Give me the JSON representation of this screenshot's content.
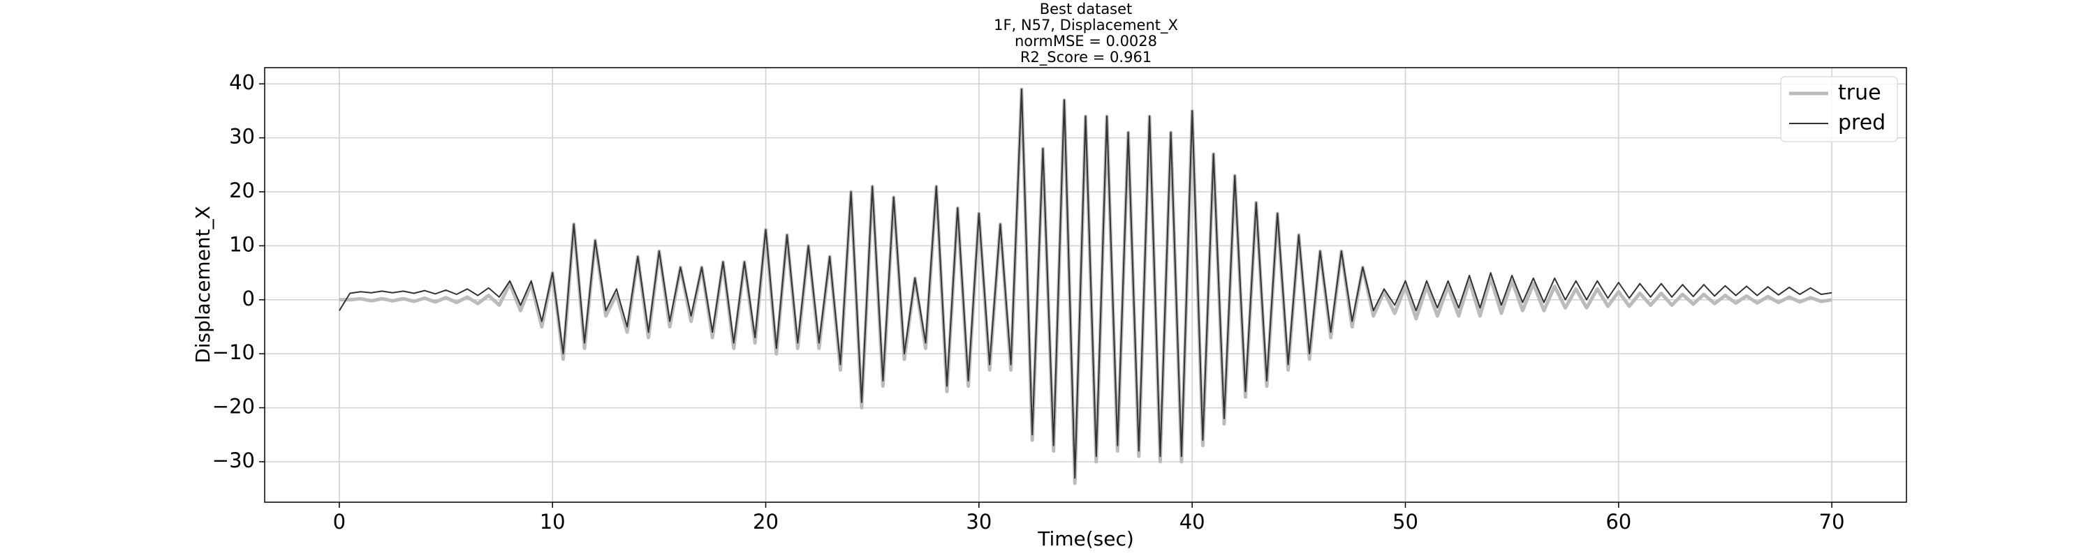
{
  "chart_data": {
    "type": "line",
    "title": "Best dataset",
    "subtitle": [
      "1F, N57, Displacement_X",
      "normMSE = 0.0028",
      "R2_Score = 0.961"
    ],
    "xlabel": "Time(sec)",
    "ylabel": "Displacement_X",
    "x": [
      0,
      0.5,
      1,
      1.5,
      2,
      2.5,
      3,
      3.5,
      4,
      4.5,
      5,
      5.5,
      6,
      6.5,
      7,
      7.5,
      8,
      8.5,
      9,
      9.5,
      10,
      10.5,
      11,
      11.5,
      12,
      12.5,
      13,
      13.5,
      14,
      14.5,
      15,
      15.5,
      16,
      16.5,
      17,
      17.5,
      18,
      18.5,
      19,
      19.5,
      20,
      20.5,
      21,
      21.5,
      22,
      22.5,
      23,
      23.5,
      24,
      24.5,
      25,
      25.5,
      26,
      26.5,
      27,
      27.5,
      28,
      28.5,
      29,
      29.5,
      30,
      30.5,
      31,
      31.5,
      32,
      32.5,
      33,
      33.5,
      34,
      34.5,
      35,
      35.5,
      36,
      36.5,
      37,
      37.5,
      38,
      38.5,
      39,
      39.5,
      40,
      40.5,
      41,
      41.5,
      42,
      42.5,
      43,
      43.5,
      44,
      44.5,
      45,
      45.5,
      46,
      46.5,
      47,
      47.5,
      48,
      48.5,
      49,
      49.5,
      50,
      50.5,
      51,
      51.5,
      52,
      52.5,
      53,
      53.5,
      54,
      54.5,
      55,
      55.5,
      56,
      56.5,
      57,
      57.5,
      58,
      58.5,
      59,
      59.5,
      60,
      60.5,
      61,
      61.5,
      62,
      62.5,
      63,
      63.5,
      64,
      64.5,
      65,
      65.5,
      66,
      66.5,
      67,
      67.5,
      68,
      68.5,
      69,
      69.5,
      70
    ],
    "series": [
      {
        "name": "true",
        "color": "#bbbbbb",
        "width": 5,
        "values": [
          0,
          0,
          0.2,
          -0.2,
          0.2,
          -0.2,
          0.2,
          -0.3,
          0.3,
          -0.4,
          0.4,
          -0.5,
          0.5,
          -0.7,
          0.8,
          -1,
          3,
          -2,
          3,
          -5,
          5,
          -11,
          14,
          -9,
          11,
          -3,
          1,
          -6,
          8,
          -7,
          9,
          -5,
          6,
          -4,
          6,
          -7,
          7,
          -9,
          7,
          -8,
          13,
          -10,
          12,
          -9,
          10,
          -9,
          8,
          -13,
          20,
          -20,
          21,
          -16,
          19,
          -11,
          4,
          -9,
          21,
          -17,
          17,
          -16,
          16,
          -13,
          14,
          -13,
          39,
          -26,
          28,
          -28,
          37,
          -34,
          34,
          -30,
          34,
          -28,
          31,
          -29,
          34,
          -30,
          31,
          -30,
          35,
          -27,
          27,
          -23,
          23,
          -18,
          18,
          -16,
          16,
          -13,
          12,
          -11,
          9,
          -7,
          9,
          -5,
          6,
          -3,
          1.5,
          -2.5,
          2.5,
          -3.5,
          2.5,
          -3,
          2.5,
          -3,
          3.5,
          -3,
          4,
          -2.5,
          3.5,
          -2,
          3,
          -2,
          2.5,
          -1.5,
          2,
          -1.5,
          2,
          -1.2,
          1.5,
          -1.2,
          1.2,
          -1,
          1.2,
          -1,
          1,
          -0.8,
          1,
          -0.7,
          0.8,
          -0.6,
          0.7,
          -0.6,
          0.6,
          -0.5,
          0.5,
          -0.4,
          0.4,
          -0.3,
          0
        ]
      },
      {
        "name": "pred",
        "color": "#333333",
        "width": 2,
        "values": [
          -2,
          1.2,
          1.5,
          1.3,
          1.6,
          1.3,
          1.6,
          1.2,
          1.7,
          1.1,
          1.8,
          1.0,
          2.0,
          0.8,
          2.2,
          0.5,
          3.5,
          -1,
          3.5,
          -4,
          5,
          -10,
          14,
          -8,
          11,
          -2,
          2,
          -5,
          8,
          -6,
          9,
          -4,
          6,
          -3,
          6,
          -6,
          7,
          -8,
          7,
          -7,
          13,
          -9,
          12,
          -8,
          10,
          -8,
          8,
          -12,
          20,
          -19,
          21,
          -15,
          19,
          -10,
          4,
          -8,
          21,
          -16,
          17,
          -15,
          16,
          -12,
          14,
          -12,
          39,
          -25,
          28,
          -27,
          37,
          -33,
          34,
          -29,
          34,
          -27,
          31,
          -28,
          34,
          -29,
          31,
          -29,
          35,
          -26,
          27,
          -22,
          23,
          -17,
          18,
          -15,
          16,
          -12,
          12,
          -10,
          9,
          -6,
          9,
          -4,
          6,
          -2,
          2,
          -1,
          3.5,
          -2,
          3.5,
          -1.5,
          3.5,
          -1.5,
          4.5,
          -1.5,
          5,
          -1,
          4.5,
          -0.5,
          4,
          -0.5,
          4,
          0,
          3.5,
          0,
          3.5,
          0.3,
          3.2,
          0.3,
          3,
          0.5,
          3,
          0.5,
          2.8,
          0.6,
          2.8,
          0.7,
          2.6,
          0.8,
          2.5,
          0.8,
          2.4,
          0.9,
          2.3,
          1,
          2.2,
          1,
          1.3
        ]
      }
    ],
    "xlim": [
      -3.5,
      73.5
    ],
    "ylim": [
      -37.5,
      43
    ],
    "xticks": [
      0,
      10,
      20,
      30,
      40,
      50,
      60,
      70
    ],
    "yticks": [
      {
        "value": -30,
        "label": "−30"
      },
      {
        "value": -20,
        "label": "−20"
      },
      {
        "value": -10,
        "label": "−10"
      },
      0,
      10,
      20,
      30,
      40
    ],
    "grid": true,
    "legend": "upper right"
  }
}
